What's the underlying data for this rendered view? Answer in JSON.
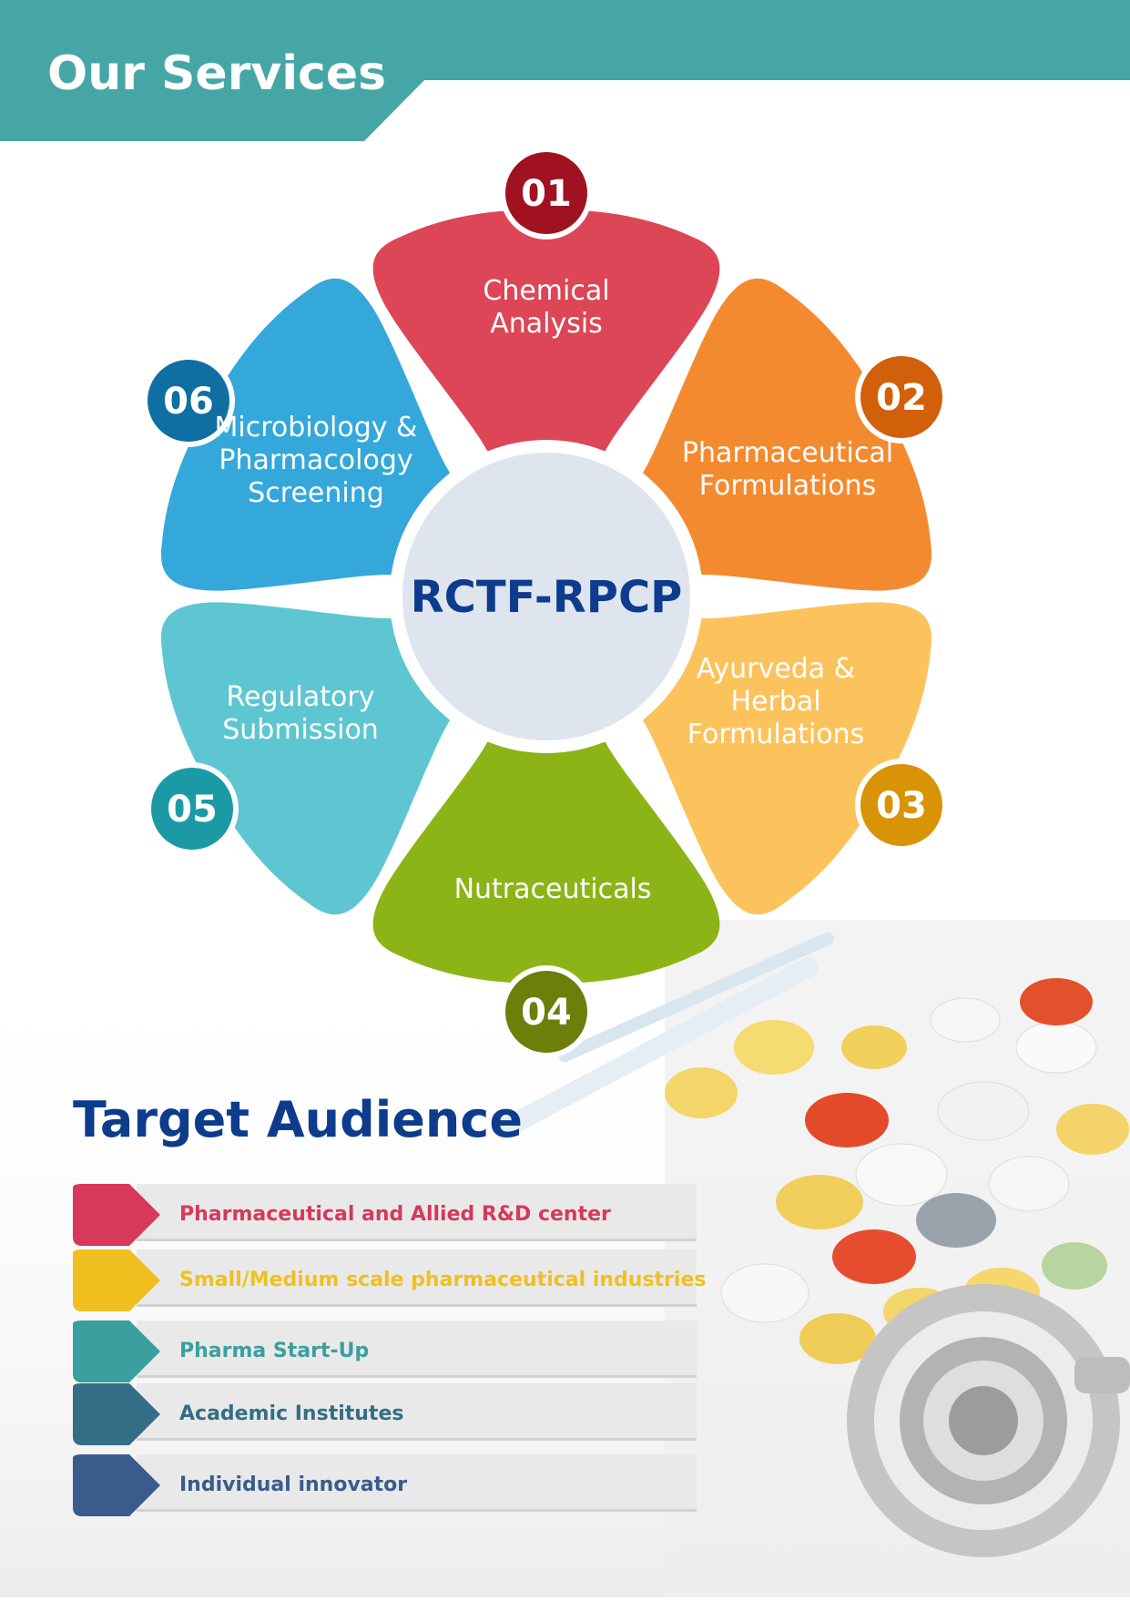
{
  "header": {
    "title": "Our Services",
    "color": "#46a6a6"
  },
  "center": {
    "label": "RCTF-RPCP"
  },
  "services": [
    {
      "number": "01",
      "lines": [
        "Chemical",
        "Analysis"
      ],
      "color": "#dc4656",
      "badge_color": "#a0121f"
    },
    {
      "number": "02",
      "lines": [
        "Pharmaceutical",
        "Formulations"
      ],
      "color": "#f48a30",
      "badge_color": "#d2600b"
    },
    {
      "number": "03",
      "lines": [
        "Ayurveda &",
        "Herbal",
        "Formulations"
      ],
      "color": "#fcc35c",
      "badge_color": "#d89406"
    },
    {
      "number": "04",
      "lines": [
        "Nutraceuticals"
      ],
      "color": "#8db416",
      "badge_color": "#6e7e0a"
    },
    {
      "number": "05",
      "lines": [
        "Regulatory",
        "Submission"
      ],
      "color": "#5ec6d0",
      "badge_color": "#1b9aa6"
    },
    {
      "number": "06",
      "lines": [
        "Microbiology &",
        "Pharmacology",
        "Screening"
      ],
      "color": "#34a8da",
      "badge_color": "#0f6fa2"
    }
  ],
  "audience": {
    "title": "Target Audience",
    "items": [
      {
        "label": "Pharmaceutical and Allied R&D center",
        "color": "#d6395a"
      },
      {
        "label": "Small/Medium scale pharmaceutical industries",
        "color": "#f0c020"
      },
      {
        "label": "Pharma Start-Up",
        "color": "#3a9f9f"
      },
      {
        "label": "Academic Institutes",
        "color": "#336e86"
      },
      {
        "label": "Individual innovator",
        "color": "#3a5c8c"
      }
    ]
  }
}
